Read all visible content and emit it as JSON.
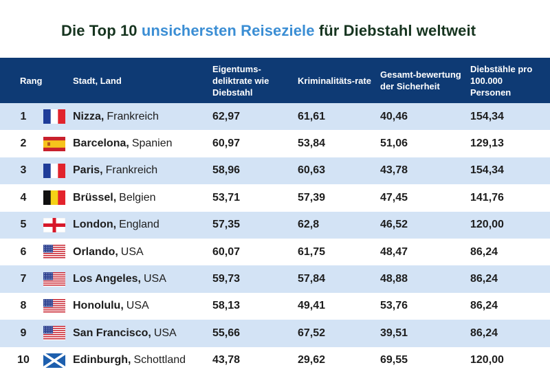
{
  "title": {
    "part1": "Die Top 10",
    "highlight": "unsichersten Reiseziele",
    "part2": "für Diebstahl weltweit",
    "highlight_color": "#3b8ed4"
  },
  "columns": {
    "rank": "Rang",
    "city": "Stadt, Land",
    "property_crime": "Eigentums-deliktrate wie Diebstahl",
    "crime_rate": "Kriminalitäts-rate",
    "safety": "Gesamt-bewertung der Sicherheit",
    "thefts": "Diebstähle pro 100.000 Personen"
  },
  "rows": [
    {
      "rank": "1",
      "flag": "france",
      "city": "Nizza,",
      "country": "Frankreich",
      "v1": "62,97",
      "v2": "61,61",
      "v3": "40,46",
      "v4": "154,34"
    },
    {
      "rank": "2",
      "flag": "spain",
      "city": "Barcelona,",
      "country": "Spanien",
      "v1": "60,97",
      "v2": "53,84",
      "v3": "51,06",
      "v4": "129,13"
    },
    {
      "rank": "3",
      "flag": "france",
      "city": "Paris,",
      "country": "Frankreich",
      "v1": "58,96",
      "v2": "60,63",
      "v3": "43,78",
      "v4": "154,34"
    },
    {
      "rank": "4",
      "flag": "belgium",
      "city": "Brüssel,",
      "country": "Belgien",
      "v1": "53,71",
      "v2": "57,39",
      "v3": "47,45",
      "v4": "141,76"
    },
    {
      "rank": "5",
      "flag": "england",
      "city": "London,",
      "country": "England",
      "v1": "57,35",
      "v2": "62,8",
      "v3": "46,52",
      "v4": "120,00"
    },
    {
      "rank": "6",
      "flag": "usa",
      "city": "Orlando,",
      "country": "USA",
      "v1": "60,07",
      "v2": "61,75",
      "v3": "48,47",
      "v4": "86,24"
    },
    {
      "rank": "7",
      "flag": "usa",
      "city": "Los Angeles,",
      "country": "USA",
      "v1": "59,73",
      "v2": "57,84",
      "v3": "48,88",
      "v4": "86,24"
    },
    {
      "rank": "8",
      "flag": "usa",
      "city": "Honolulu,",
      "country": "USA",
      "v1": "58,13",
      "v2": "49,41",
      "v3": "53,76",
      "v4": "86,24"
    },
    {
      "rank": "9",
      "flag": "usa",
      "city": "San Francisco,",
      "country": "USA",
      "v1": "55,66",
      "v2": "67,52",
      "v3": "39,51",
      "v4": "86,24"
    },
    {
      "rank": "10",
      "flag": "scotland",
      "city": "Edinburgh,",
      "country": "Schottland",
      "v1": "43,78",
      "v2": "29,62",
      "v3": "69,55",
      "v4": "120,00"
    }
  ]
}
